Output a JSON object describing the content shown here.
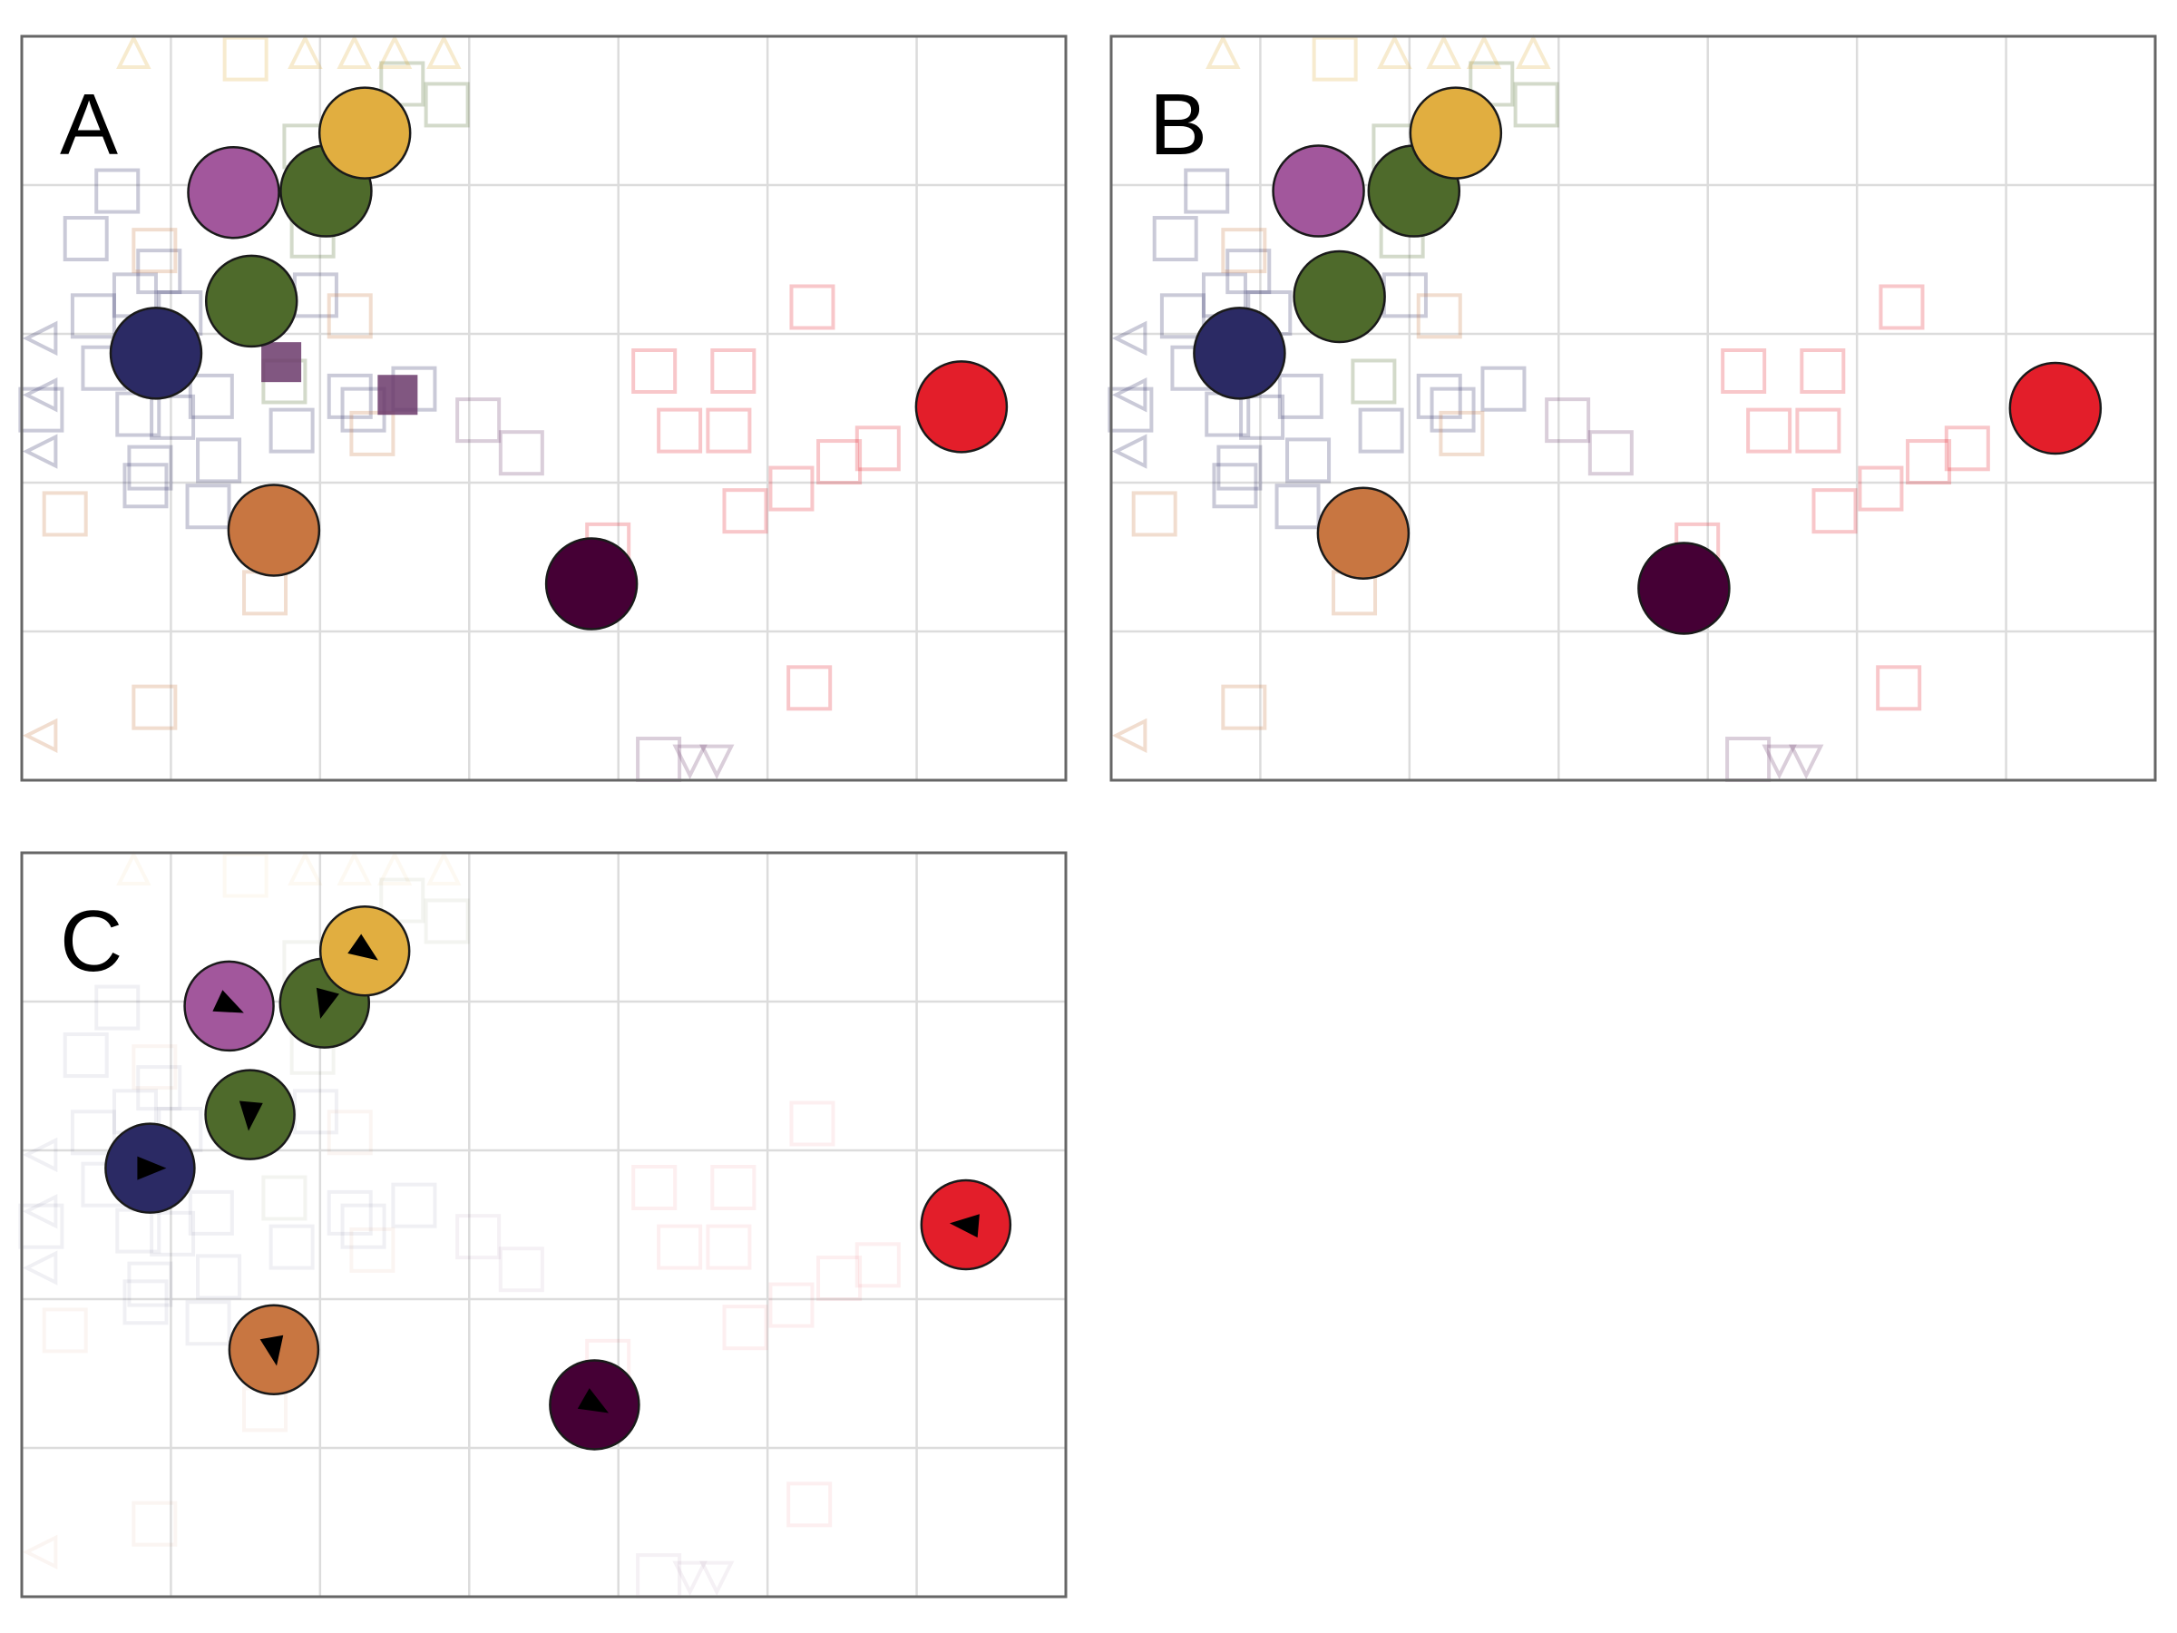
{
  "chart_data": [
    {
      "type": "scatter",
      "label": "A",
      "xlim": [
        0,
        7
      ],
      "ylim": [
        0,
        5
      ],
      "xticks": [
        1,
        2,
        3,
        4,
        5,
        6
      ],
      "yticks": [
        1,
        2,
        3,
        4
      ],
      "grid": true,
      "x": [
        0.9,
        1.54,
        1.42,
        2.04,
        2.3,
        1.69,
        3.82,
        6.3
      ],
      "y": [
        2.87,
        3.22,
        3.95,
        3.96,
        4.35,
        1.68,
        1.32,
        2.51
      ],
      "colors": [
        "#2b2a64",
        "#4e6a2b",
        "#a2579c",
        "#4e6a2b",
        "#e1ae40",
        "#c87641",
        "#450035",
        "#e31e2a"
      ],
      "highlights": {
        "color": "#6b3a6b",
        "x": [
          1.74,
          2.52
        ],
        "y": [
          2.81,
          2.59
        ]
      },
      "background": [
        {
          "color": "#e31e2a",
          "shape": "square",
          "x": [
            5.3,
            4.24,
            4.77,
            4.41,
            4.74,
            5.74,
            5.48,
            5.16,
            4.85,
            3.93,
            5.28
          ],
          "y": [
            3.18,
            2.75,
            2.75,
            2.35,
            2.35,
            2.23,
            2.14,
            1.96,
            1.81,
            1.58,
            0.62
          ]
        },
        {
          "color": "#6b3a6b",
          "shape": "square",
          "x": [
            3.06,
            3.35,
            4.27
          ],
          "y": [
            2.42,
            2.2,
            0.14
          ]
        },
        {
          "color": "#2b2a64",
          "shape": "square",
          "x": [
            0.64,
            0.43,
            0.48,
            0.76,
            0.92,
            1.06,
            0.55,
            0.78,
            1.01,
            1.27,
            1.81,
            1.32,
            0.86,
            0.83,
            1.25,
            2.2,
            2.29,
            1.97,
            0.13,
            2.63
          ],
          "y": [
            3.96,
            3.64,
            3.12,
            3.26,
            3.42,
            3.14,
            2.77,
            2.46,
            2.44,
            2.58,
            2.35,
            2.15,
            2.1,
            1.98,
            1.84,
            2.58,
            2.49,
            3.26,
            2.49,
            2.63
          ]
        },
        {
          "color": "#4e6a2b",
          "shape": "square",
          "x": [
            2.55,
            2.85,
            1.9,
            1.95,
            1.76
          ],
          "y": [
            4.68,
            4.54,
            4.26,
            3.66,
            2.68
          ]
        },
        {
          "color": "#e1ae40",
          "shape": "square",
          "x": [
            1.5
          ],
          "y": [
            4.85
          ]
        },
        {
          "color": "#e1ae40",
          "shape": "triangle-up",
          "x": [
            0.75,
            1.9,
            2.23,
            2.5,
            2.83
          ],
          "y": [
            4.89,
            4.89,
            4.89,
            4.89,
            4.89
          ]
        },
        {
          "color": "#c87641",
          "shape": "square",
          "x": [
            0.89,
            2.2,
            0.29,
            1.63,
            0.89,
            2.35
          ],
          "y": [
            3.56,
            3.12,
            1.79,
            1.26,
            0.49,
            2.33
          ]
        },
        {
          "color": "#2b2a64",
          "shape": "triangle-left",
          "x": [
            0.13,
            0.13,
            0.13
          ],
          "y": [
            2.97,
            2.59,
            2.21
          ]
        },
        {
          "color": "#c87641",
          "shape": "triangle-left",
          "x": [
            0.13
          ],
          "y": [
            0.3
          ]
        },
        {
          "color": "#6b3a6b",
          "shape": "triangle-down",
          "x": [
            4.48,
            4.66
          ],
          "y": [
            0.13,
            0.13
          ]
        }
      ]
    },
    {
      "type": "scatter",
      "label": "B",
      "xlim": [
        0,
        7
      ],
      "ylim": [
        0,
        5
      ],
      "xticks": [
        1,
        2,
        3,
        4,
        5,
        6
      ],
      "yticks": [
        1,
        2,
        3,
        4
      ],
      "grid": true,
      "x": [
        0.86,
        1.53,
        1.39,
        2.03,
        2.31,
        1.69,
        3.84,
        6.33
      ],
      "y": [
        2.87,
        3.25,
        3.96,
        3.96,
        4.35,
        1.66,
        1.29,
        2.5
      ],
      "colors": [
        "#2b2a64",
        "#4e6a2b",
        "#a2579c",
        "#4e6a2b",
        "#e1ae40",
        "#c87641",
        "#450035",
        "#e31e2a"
      ]
    },
    {
      "type": "scatter",
      "label": "C",
      "xlim": [
        0,
        7
      ],
      "ylim": [
        0,
        5
      ],
      "xticks": [
        1,
        2,
        3,
        4,
        5,
        6
      ],
      "yticks": [
        1,
        2,
        3,
        4
      ],
      "grid": true,
      "x": [
        0.86,
        1.53,
        1.39,
        2.03,
        2.3,
        1.69,
        3.84,
        6.33
      ],
      "y": [
        2.88,
        3.24,
        3.97,
        3.99,
        4.34,
        1.66,
        1.29,
        2.5
      ],
      "colors": [
        "#2b2a64",
        "#4e6a2b",
        "#a2579c",
        "#4e6a2b",
        "#e1ae40",
        "#c87641",
        "#450035",
        "#e31e2a"
      ],
      "directions": [
        0,
        -95,
        -25,
        -105,
        -35,
        -80,
        -30,
        175
      ]
    }
  ]
}
